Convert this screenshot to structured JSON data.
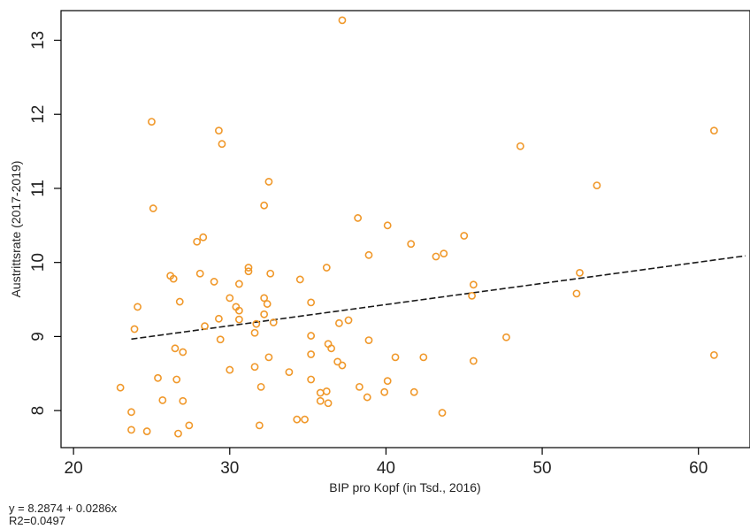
{
  "chart_data": {
    "type": "scatter",
    "xlabel": "BIP pro Kopf (in Tsd., 2016)",
    "ylabel": "Austrittsrate (2017-2019)",
    "xlim": [
      19.2,
      63.3
    ],
    "ylim": [
      7.5,
      13.4
    ],
    "x_ticks": [
      20,
      30,
      40,
      50,
      60
    ],
    "y_ticks": [
      8,
      9,
      10,
      11,
      12,
      13
    ],
    "grid": false,
    "marker_color": "#f0982a",
    "trend_color": "#1a1a1a",
    "points": [
      [
        37.2,
        13.27
      ],
      [
        25.0,
        11.9
      ],
      [
        29.3,
        11.78
      ],
      [
        29.5,
        11.6
      ],
      [
        48.6,
        11.57
      ],
      [
        61.0,
        11.78
      ],
      [
        53.5,
        11.04
      ],
      [
        32.5,
        11.09
      ],
      [
        25.1,
        10.73
      ],
      [
        32.2,
        10.77
      ],
      [
        38.2,
        10.6
      ],
      [
        40.1,
        10.5
      ],
      [
        41.6,
        10.25
      ],
      [
        45.0,
        10.36
      ],
      [
        27.9,
        10.28
      ],
      [
        28.3,
        10.34
      ],
      [
        43.2,
        10.08
      ],
      [
        43.7,
        10.12
      ],
      [
        38.9,
        10.1
      ],
      [
        31.2,
        9.93
      ],
      [
        31.2,
        9.88
      ],
      [
        36.2,
        9.93
      ],
      [
        32.6,
        9.85
      ],
      [
        28.1,
        9.85
      ],
      [
        26.2,
        9.82
      ],
      [
        26.4,
        9.78
      ],
      [
        29.0,
        9.74
      ],
      [
        30.6,
        9.71
      ],
      [
        34.5,
        9.77
      ],
      [
        45.6,
        9.7
      ],
      [
        52.4,
        9.86
      ],
      [
        52.2,
        9.58
      ],
      [
        45.5,
        9.55
      ],
      [
        26.8,
        9.47
      ],
      [
        30.0,
        9.52
      ],
      [
        32.2,
        9.52
      ],
      [
        32.4,
        9.44
      ],
      [
        24.1,
        9.4
      ],
      [
        30.4,
        9.4
      ],
      [
        30.6,
        9.35
      ],
      [
        35.2,
        9.46
      ],
      [
        32.2,
        9.3
      ],
      [
        29.3,
        9.24
      ],
      [
        30.6,
        9.23
      ],
      [
        37.0,
        9.18
      ],
      [
        37.6,
        9.22
      ],
      [
        32.8,
        9.19
      ],
      [
        31.7,
        9.17
      ],
      [
        28.4,
        9.14
      ],
      [
        23.9,
        9.1
      ],
      [
        31.6,
        9.05
      ],
      [
        35.2,
        9.01
      ],
      [
        29.4,
        8.96
      ],
      [
        38.9,
        8.95
      ],
      [
        47.7,
        8.99
      ],
      [
        36.3,
        8.9
      ],
      [
        36.5,
        8.84
      ],
      [
        26.5,
        8.84
      ],
      [
        27.0,
        8.79
      ],
      [
        35.2,
        8.76
      ],
      [
        32.5,
        8.72
      ],
      [
        40.6,
        8.72
      ],
      [
        42.4,
        8.72
      ],
      [
        61.0,
        8.75
      ],
      [
        36.9,
        8.66
      ],
      [
        37.2,
        8.61
      ],
      [
        45.6,
        8.67
      ],
      [
        31.6,
        8.59
      ],
      [
        30.0,
        8.55
      ],
      [
        33.8,
        8.52
      ],
      [
        25.4,
        8.44
      ],
      [
        26.6,
        8.42
      ],
      [
        35.2,
        8.42
      ],
      [
        40.1,
        8.4
      ],
      [
        23.0,
        8.31
      ],
      [
        32.0,
        8.32
      ],
      [
        38.3,
        8.32
      ],
      [
        35.8,
        8.24
      ],
      [
        36.2,
        8.26
      ],
      [
        39.9,
        8.25
      ],
      [
        41.8,
        8.25
      ],
      [
        38.8,
        8.18
      ],
      [
        25.7,
        8.14
      ],
      [
        27.0,
        8.13
      ],
      [
        35.8,
        8.13
      ],
      [
        36.3,
        8.1
      ],
      [
        23.7,
        7.98
      ],
      [
        43.6,
        7.97
      ],
      [
        34.3,
        7.88
      ],
      [
        34.8,
        7.88
      ],
      [
        27.4,
        7.8
      ],
      [
        31.9,
        7.8
      ],
      [
        23.7,
        7.74
      ],
      [
        24.7,
        7.72
      ],
      [
        26.7,
        7.69
      ]
    ],
    "trendline": {
      "intercept": 8.2874,
      "slope": 0.0286,
      "x_range": [
        23.7,
        63.0
      ]
    },
    "annotations": [
      "y = 8.2874 + 0.0286x",
      "R2=0.0497"
    ]
  }
}
